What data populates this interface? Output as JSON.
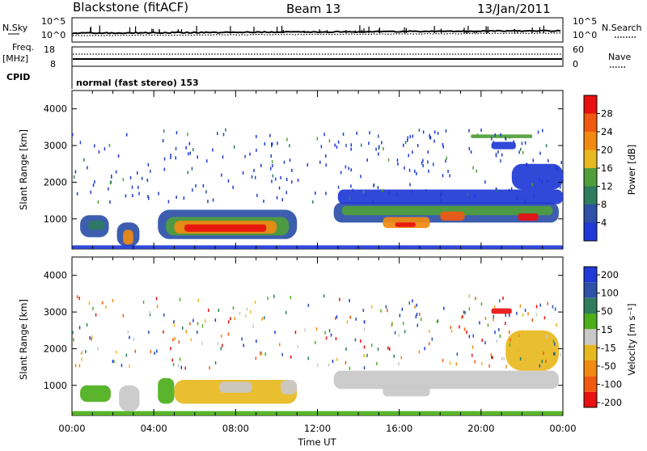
{
  "header": {
    "station": "Blackstone (fitACF)",
    "beam": "Beam 13",
    "date": "13/Jan/2011"
  },
  "info_panel": {
    "nsky_label": "N.Sky",
    "nsearch_label": "N.Search",
    "freq_label": "Freq.",
    "freq_unit": "[MHz]",
    "nave_label": "Nave",
    "cpid_label": "CPID",
    "cpid_value": "normal (fast stereo) 153",
    "noise_tick_top": "10^5",
    "noise_tick_bottom": "10^0",
    "freq_ticks": [
      "18",
      "8"
    ],
    "nave_ticks": [
      "60",
      "0"
    ]
  },
  "colors": {
    "power": [
      "#1f3ad6",
      "#2d50a8",
      "#2e7d5e",
      "#4f9e3a",
      "#e8b820",
      "#f08a10",
      "#f05a10",
      "#e81010"
    ],
    "velocity": [
      "#1f3ad6",
      "#2d50a8",
      "#2e7d5e",
      "#4caf1a",
      "#c8c8c8",
      "#e8b820",
      "#f08a10",
      "#f05a10",
      "#e81010"
    ]
  },
  "chart_data": [
    {
      "type": "heatmap",
      "name": "Power",
      "ylabel": "Slant Range [km]",
      "xlabel": "Time UT",
      "xlim": [
        0,
        24
      ],
      "ylim": [
        180,
        4500
      ],
      "x_ticks": [
        "00:00",
        "04:00",
        "08:00",
        "12:00",
        "16:00",
        "20:00",
        "00:00"
      ],
      "y_ticks": [
        1000,
        2000,
        3000,
        4000
      ],
      "colorbar_label": "Power [dB]",
      "colorbar_ticks": [
        "4",
        "8",
        "12",
        "16",
        "20",
        "24",
        "28"
      ],
      "regions": [
        {
          "t0": 0.4,
          "t1": 1.8,
          "r0": 500,
          "r1": 1100,
          "level": 1
        },
        {
          "t0": 0.8,
          "t1": 1.6,
          "r0": 700,
          "r1": 950,
          "level": 2
        },
        {
          "t0": 2.2,
          "t1": 3.3,
          "r0": 250,
          "r1": 900,
          "level": 1
        },
        {
          "t0": 2.5,
          "t1": 3.0,
          "r0": 300,
          "r1": 700,
          "level": 5
        },
        {
          "t0": 4.2,
          "t1": 11.0,
          "r0": 450,
          "r1": 1250,
          "level": 1
        },
        {
          "t0": 4.6,
          "t1": 10.6,
          "r0": 550,
          "r1": 1050,
          "level": 3
        },
        {
          "t0": 5.0,
          "t1": 10.0,
          "r0": 600,
          "r1": 950,
          "level": 5
        },
        {
          "t0": 5.5,
          "t1": 9.5,
          "r0": 650,
          "r1": 850,
          "level": 7
        },
        {
          "t0": 12.8,
          "t1": 23.8,
          "r0": 900,
          "r1": 1450,
          "level": 1
        },
        {
          "t0": 13.2,
          "t1": 23.5,
          "r0": 1100,
          "r1": 1350,
          "level": 3
        },
        {
          "t0": 15.2,
          "t1": 17.5,
          "r0": 750,
          "r1": 1050,
          "level": 5
        },
        {
          "t0": 15.8,
          "t1": 16.8,
          "r0": 780,
          "r1": 900,
          "level": 7
        },
        {
          "t0": 18.0,
          "t1": 19.2,
          "r0": 950,
          "r1": 1200,
          "level": 6
        },
        {
          "t0": 21.8,
          "t1": 22.8,
          "r0": 950,
          "r1": 1150,
          "level": 7
        },
        {
          "t0": 13.0,
          "t1": 24.0,
          "r0": 1400,
          "r1": 1800,
          "level": 0
        },
        {
          "t0": 21.5,
          "t1": 24.0,
          "r0": 1800,
          "r1": 2500,
          "level": 0
        },
        {
          "t0": 20.5,
          "t1": 21.7,
          "r0": 2900,
          "r1": 3100,
          "level": 0
        },
        {
          "t0": 19.5,
          "t1": 22.5,
          "r0": 3200,
          "r1": 3300,
          "level": 3
        },
        {
          "t0": 0.0,
          "t1": 24.0,
          "r0": 180,
          "r1": 280,
          "level": 0
        }
      ]
    },
    {
      "type": "heatmap",
      "name": "Velocity",
      "ylabel": "Slant Range [km]",
      "xlabel": "Time UT",
      "xlim": [
        0,
        24
      ],
      "ylim": [
        180,
        4500
      ],
      "x_ticks": [
        "00:00",
        "04:00",
        "08:00",
        "12:00",
        "16:00",
        "20:00",
        "00:00"
      ],
      "y_ticks": [
        1000,
        2000,
        3000,
        4000
      ],
      "colorbar_label": "Velocity [m s⁻¹]",
      "colorbar_ticks": [
        "200",
        "100",
        "50",
        "15",
        "-15",
        "-50",
        "-100",
        "-200"
      ],
      "regions": [
        {
          "t0": 0.4,
          "t1": 1.9,
          "r0": 550,
          "r1": 1000,
          "level": 3
        },
        {
          "t0": 2.3,
          "t1": 3.3,
          "r0": 300,
          "r1": 1000,
          "level": 4
        },
        {
          "t0": 4.2,
          "t1": 5.0,
          "r0": 500,
          "r1": 1200,
          "level": 3
        },
        {
          "t0": 5.0,
          "t1": 11.0,
          "r0": 500,
          "r1": 1150,
          "level": 5
        },
        {
          "t0": 7.2,
          "t1": 8.8,
          "r0": 800,
          "r1": 1100,
          "level": 4
        },
        {
          "t0": 10.2,
          "t1": 11.0,
          "r0": 750,
          "r1": 1150,
          "level": 4
        },
        {
          "t0": 12.8,
          "t1": 23.8,
          "r0": 900,
          "r1": 1400,
          "level": 4
        },
        {
          "t0": 15.2,
          "t1": 17.5,
          "r0": 700,
          "r1": 1000,
          "level": 4
        },
        {
          "t0": 21.2,
          "t1": 23.8,
          "r0": 1400,
          "r1": 2500,
          "level": 5
        },
        {
          "t0": 20.5,
          "t1": 21.5,
          "r0": 2950,
          "r1": 3100,
          "level": 8
        },
        {
          "t0": 0.0,
          "t1": 24.0,
          "r0": 180,
          "r1": 300,
          "level": 3
        }
      ]
    }
  ]
}
